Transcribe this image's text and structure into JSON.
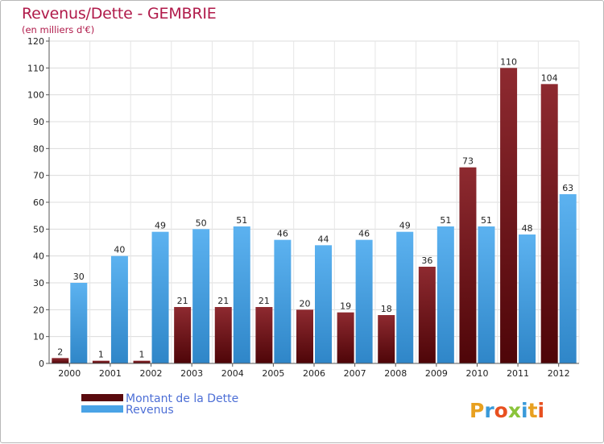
{
  "chart_data": {
    "type": "bar",
    "title": "Revenus/Dette - GEMBRIE",
    "subtitle": "(en milliers d'€)",
    "categories": [
      "2000",
      "2001",
      "2002",
      "2003",
      "2004",
      "2005",
      "2006",
      "2007",
      "2008",
      "2009",
      "2010",
      "2011",
      "2012"
    ],
    "series": [
      {
        "name": "Montant de la Dette",
        "color": "#7a1a1e",
        "values": [
          2,
          1,
          1,
          21,
          21,
          21,
          20,
          19,
          18,
          36,
          73,
          110,
          104
        ]
      },
      {
        "name": "Revenus",
        "color": "#4aa3e6",
        "values": [
          30,
          40,
          49,
          50,
          51,
          46,
          44,
          46,
          49,
          51,
          51,
          48,
          63
        ]
      }
    ],
    "ylim": [
      0,
      120
    ],
    "yticks": [
      0,
      10,
      20,
      30,
      40,
      50,
      60,
      70,
      80,
      90,
      100,
      110,
      120
    ],
    "grid": true,
    "legend_position": "bottom-left"
  },
  "branding": {
    "logo_text": "Proxiti",
    "logo_colors": [
      "#e8a020",
      "#3a9ad9",
      "#e85020",
      "#8ac43a",
      "#3a9ad9",
      "#e8a020",
      "#e85020"
    ]
  }
}
